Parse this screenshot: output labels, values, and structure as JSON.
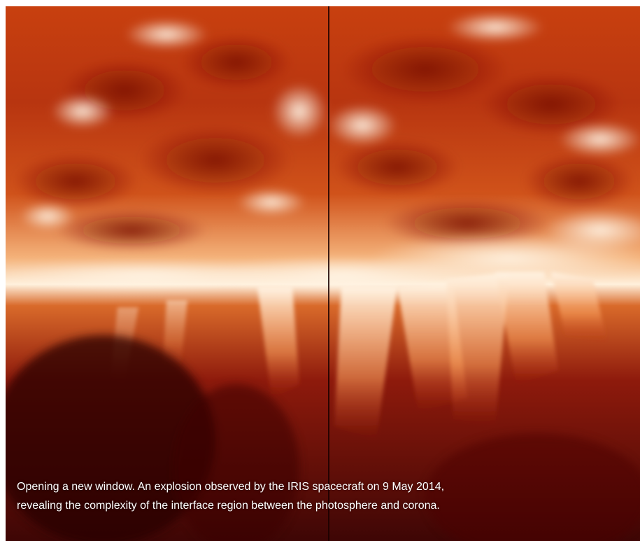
{
  "figure": {
    "subject": "solar interface region image",
    "caption_lines": [
      "Opening a new window. An explosion observed by the IRIS spacecraft on 9 May 2014,",
      "revealing the complexity of the interface region between the photosphere and corona."
    ]
  },
  "colors": {
    "deep_red": "#3a0504",
    "red": "#9c1a0c",
    "orange": "#e06a1a",
    "bright": "#fff1dc",
    "caption_text": "#ffffff"
  }
}
